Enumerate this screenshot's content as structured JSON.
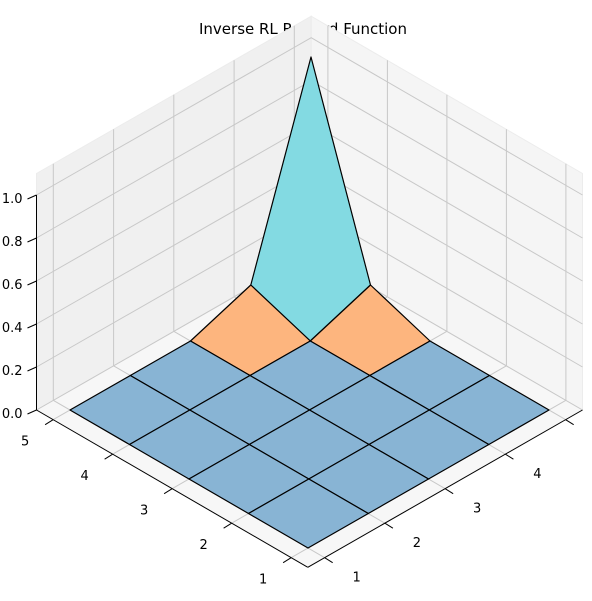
{
  "chart_data": {
    "type": "surface3d",
    "title": "Inverse RL Reward Function",
    "x": [
      1,
      2,
      3,
      4,
      5
    ],
    "y": [
      1,
      2,
      3,
      4,
      5
    ],
    "z": [
      [
        0,
        0,
        0,
        0,
        0
      ],
      [
        0,
        0,
        0,
        0,
        0
      ],
      [
        0,
        0,
        0,
        0,
        0
      ],
      [
        0,
        0,
        0,
        0,
        0.1
      ],
      [
        0,
        0,
        0,
        0.1,
        1.0
      ]
    ],
    "zlim": [
      0,
      1
    ],
    "x_ticks": [
      "1",
      "2",
      "3",
      "4",
      "5"
    ],
    "y_ticks": [
      "1",
      "2",
      "3",
      "4",
      "5"
    ],
    "z_ticks": [
      "0.0",
      "0.2",
      "0.4",
      "0.6",
      "0.8",
      "1.0"
    ],
    "grid": true,
    "colors": {
      "base": "#88b4d4",
      "mid": "#fdb57e",
      "high": "#83dae2",
      "pane_left": "#f0f0f0",
      "pane_right": "#f5f5f5",
      "pane_floor": "#f7f7f7",
      "grid": "#c8c8c8"
    }
  }
}
